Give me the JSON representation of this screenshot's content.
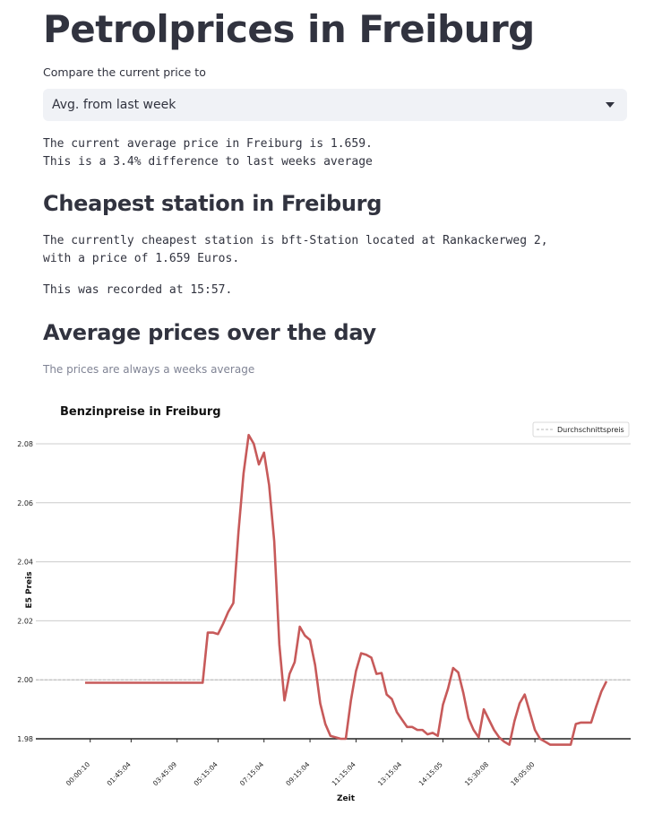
{
  "page": {
    "title": "Petrolprices in Freiburg",
    "compare_label": "Compare the current price to",
    "compare_selected": "Avg. from last week",
    "current_line1": "The current average price in Freiburg is 1.659.",
    "current_line2": "This is a 3.4% difference to last weeks average",
    "cheapest_heading": "Cheapest station in Freiburg",
    "cheapest_line1": "The currently cheapest station is bft-Station located at Rankackerweg 2,",
    "cheapest_line2": "with a price of 1.659 Euros.",
    "recorded": "This was recorded at 15:57.",
    "avg_heading": "Average prices over the day",
    "avg_caption": "The prices are always a weeks average"
  },
  "chart_data": {
    "type": "line",
    "title": "Benzinpreise in Freiburg",
    "xlabel": "Zeit",
    "ylabel": "E5 Preis",
    "ylim": [
      1.977,
      2.088
    ],
    "yticks": [
      1.98,
      2.0,
      2.02,
      2.04,
      2.06,
      2.08
    ],
    "ytick_labels": [
      "1.98",
      "2.00",
      "2.02",
      "2.04",
      "2.06",
      "2.08"
    ],
    "xtick_labels": [
      "00:00:10",
      "01:45:04",
      "03:45:09",
      "05:15:04",
      "07:15:04",
      "09:15:04",
      "11:15:04",
      "13:15:04",
      "14:15:05",
      "15:30:08",
      "18:05:00"
    ],
    "xtick_index": [
      1,
      9,
      18,
      26,
      35,
      44,
      53,
      62,
      70,
      79,
      88
    ],
    "reference": {
      "name": "Durchschnittspreis",
      "value": 2.0
    },
    "legend_position": "top-right",
    "grid": true,
    "colors": {
      "line": "#c75a5a",
      "reference": "#b8b8b8",
      "grid": "#cccccc"
    },
    "series": [
      {
        "values": [
          1.999,
          1.999,
          1.999,
          1.999,
          1.999,
          1.999,
          1.999,
          1.999,
          1.999,
          1.999,
          1.999,
          1.999,
          1.999,
          1.999,
          1.999,
          1.999,
          1.999,
          1.999,
          1.999,
          1.999,
          1.999,
          1.999,
          1.999,
          1.999,
          2.016,
          2.016,
          2.0155,
          2.019,
          2.023,
          2.026,
          2.05,
          2.07,
          2.083,
          2.08,
          2.073,
          2.077,
          2.066,
          2.047,
          2.012,
          1.993,
          2.002,
          2.006,
          2.018,
          2.015,
          2.0135,
          2.005,
          1.992,
          1.985,
          1.981,
          1.9805,
          1.98,
          1.98,
          1.993,
          2.003,
          2.009,
          2.0085,
          2.0075,
          2.002,
          2.0023,
          1.995,
          1.9935,
          1.989,
          1.9865,
          1.984,
          1.984,
          1.983,
          1.983,
          1.9815,
          1.982,
          1.981,
          1.9915,
          1.997,
          2.004,
          2.0025,
          1.9955,
          1.987,
          1.983,
          1.9805,
          1.99,
          1.9865,
          1.983,
          1.9805,
          1.979,
          1.978,
          1.986,
          1.992,
          1.995,
          1.989,
          1.983,
          1.98,
          1.979,
          1.978,
          1.978,
          1.978,
          1.978,
          1.978,
          1.985,
          1.9855,
          1.9855,
          1.9855,
          1.991,
          1.996,
          1.9995
        ]
      }
    ]
  }
}
